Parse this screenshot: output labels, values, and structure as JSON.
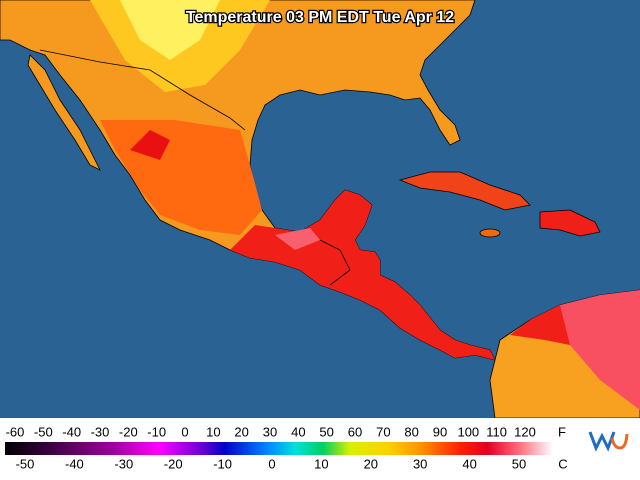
{
  "title": "Temperature 03 PM EDT Tue Apr 12",
  "legend": {
    "fahrenheit_unit": "F",
    "celsius_unit": "C",
    "fahrenheit_labels": [
      -60,
      -50,
      -40,
      -30,
      -20,
      -10,
      0,
      10,
      20,
      30,
      40,
      50,
      60,
      70,
      80,
      90,
      100,
      110,
      120
    ],
    "celsius_labels": [
      -50,
      -40,
      -30,
      -20,
      -10,
      0,
      10,
      20,
      30,
      40,
      50
    ]
  }
}
